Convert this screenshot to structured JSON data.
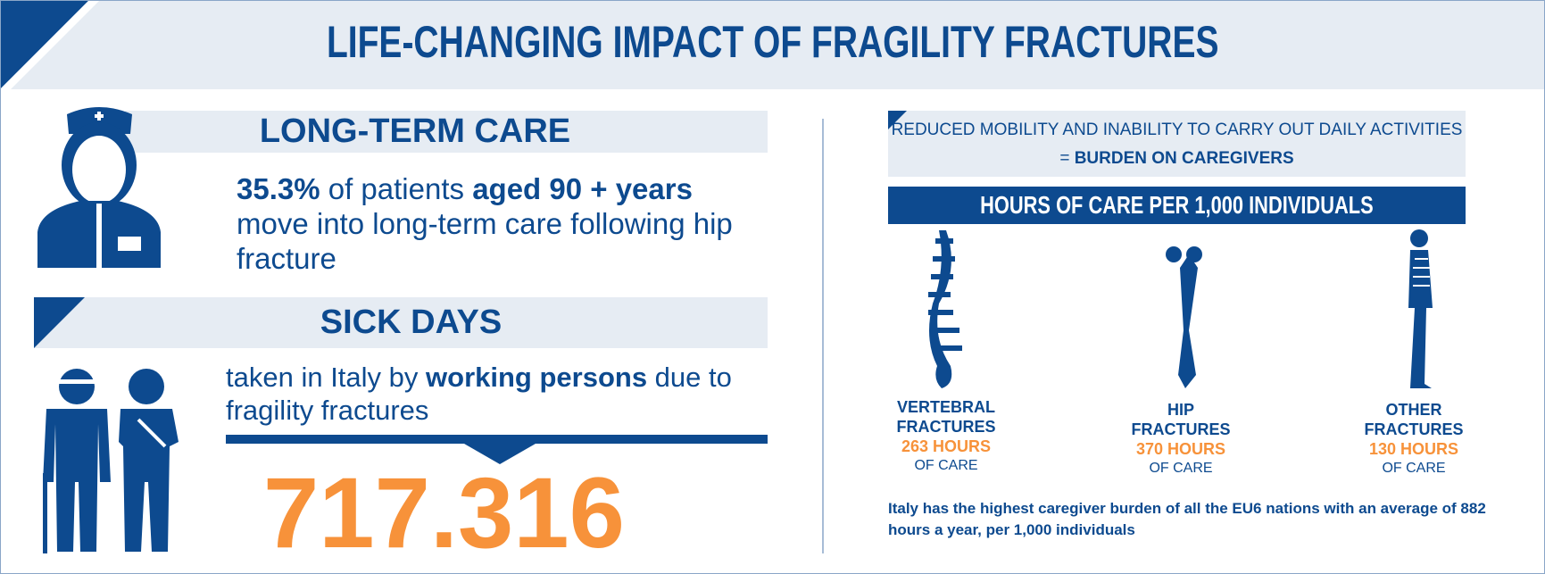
{
  "title": "LIFE-CHANGING IMPACT OF FRAGILITY FRACTURES",
  "long_term_care": {
    "heading": "LONG-TERM CARE",
    "parts": [
      {
        "text": "35.3%",
        "bold": true
      },
      {
        "text": " of patients ",
        "bold": false
      },
      {
        "text": "aged 90 + years",
        "bold": true
      },
      {
        "text": " move into long-term care following hip fracture",
        "bold": false
      }
    ]
  },
  "sick_days": {
    "heading": "SICK DAYS",
    "parts": [
      {
        "text": "taken in Italy by ",
        "bold": false
      },
      {
        "text": "working persons",
        "bold": true
      },
      {
        "text": " due to fragility fractures",
        "bold": false
      }
    ],
    "number": "717.316"
  },
  "caregivers": {
    "parts": [
      {
        "text": "REDUCED MOBILITY AND INABILITY TO CARRY OUT DAILY ACTIVITIES = ",
        "bold": false
      },
      {
        "text": "BURDEN ON CAREGIVERS",
        "bold": true
      }
    ],
    "header": "HOURS OF CARE PER 1,000 INDIVIDUALS",
    "items": [
      {
        "name": "VERTEBRAL FRACTURES",
        "hours": "263 HOURS",
        "unit": "OF CARE"
      },
      {
        "name": "HIP FRACTURES",
        "hours": "370 HOURS",
        "unit": "OF CARE"
      },
      {
        "name": "OTHER FRACTURES",
        "hours": "130 HOURS",
        "unit": "OF CARE"
      }
    ],
    "footnote": "Italy has the highest caregiver burden of all the EU6 nations with an average of 882 hours a year, per 1,000 individuals"
  }
}
